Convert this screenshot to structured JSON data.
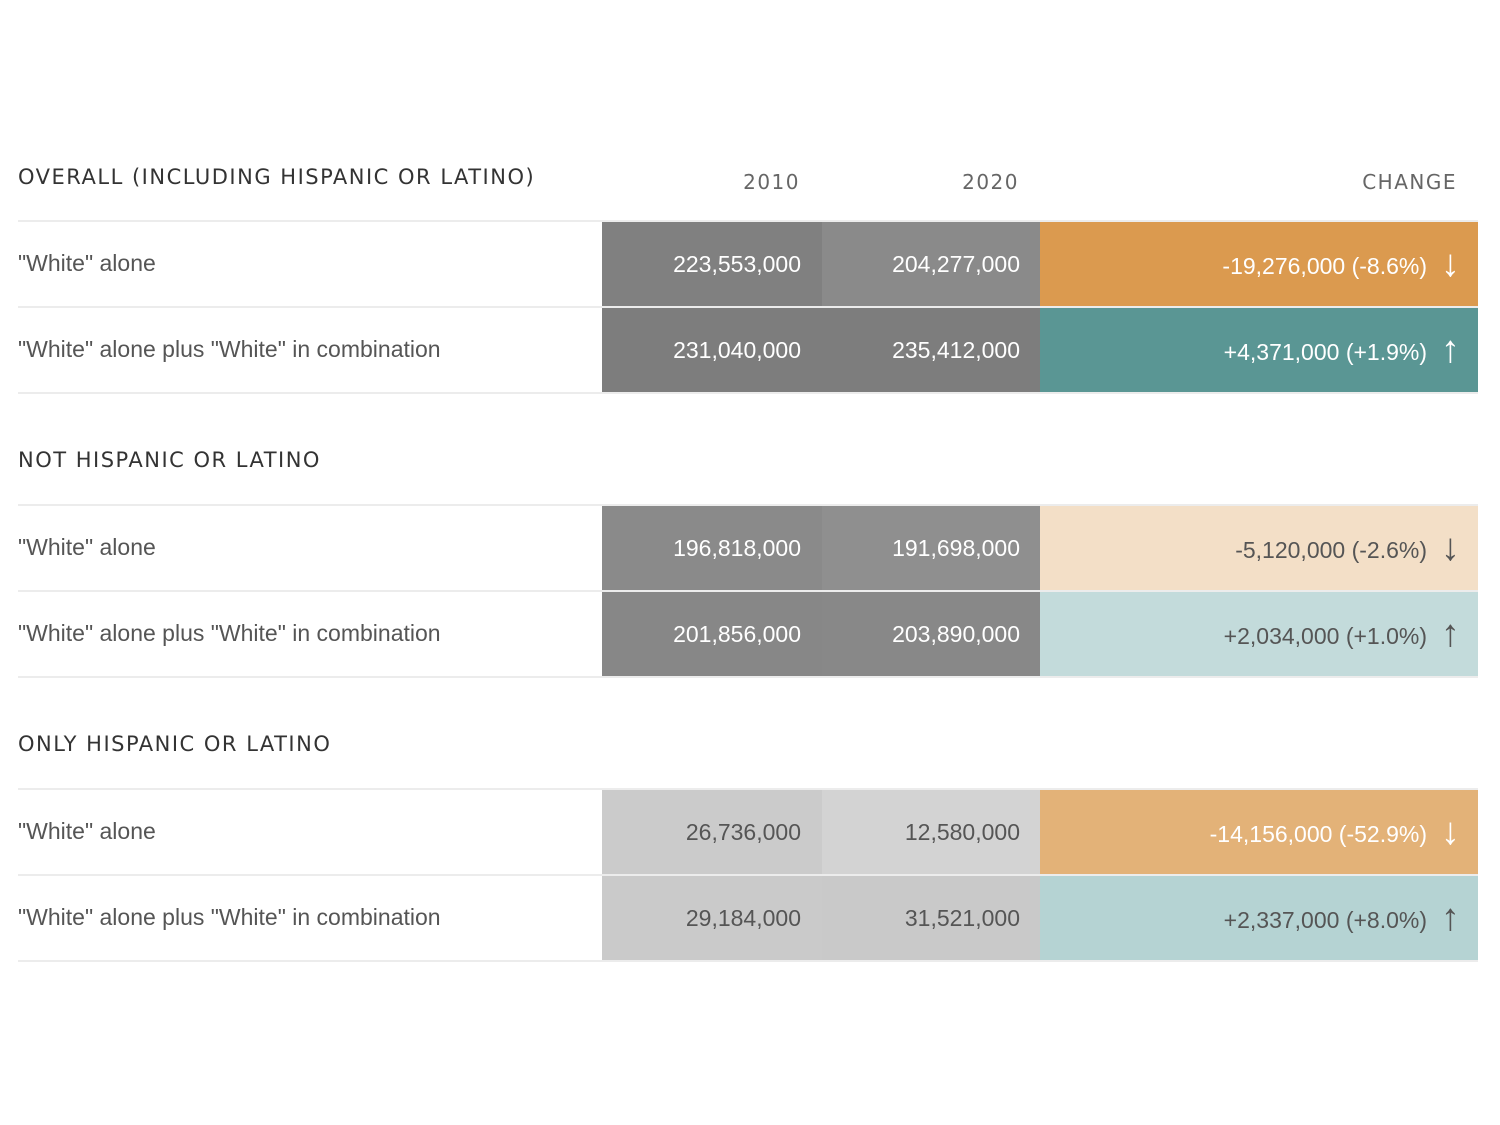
{
  "chart_data": {
    "type": "table",
    "columns": [
      "2010",
      "2020",
      "CHANGE"
    ],
    "sections": [
      {
        "title": "OVERALL (INCLUDING HISPANIC OR LATINO)",
        "rows": [
          {
            "label": "\"White\" alone",
            "v2010": "223,553,000",
            "v2020": "204,277,000",
            "change": "-19,276,000 (-8.6%)",
            "direction": "down",
            "color2010": "#808080",
            "color2020": "#8a8a8a",
            "colorChange": "#db9a4f",
            "textColor": "#ffffff"
          },
          {
            "label": "\"White\" alone plus \"White\" in combination",
            "v2010": "231,040,000",
            "v2020": "235,412,000",
            "change": "+4,371,000 (+1.9%)",
            "direction": "up",
            "color2010": "#7d7d7d",
            "color2020": "#7d7d7d",
            "colorChange": "#5a9694",
            "textColor": "#ffffff"
          }
        ]
      },
      {
        "title": "NOT HISPANIC OR LATINO",
        "rows": [
          {
            "label": "\"White\" alone",
            "v2010": "196,818,000",
            "v2020": "191,698,000",
            "change": "-5,120,000 (-2.6%)",
            "direction": "down",
            "color2010": "#8a8a8a",
            "color2020": "#8f8f8f",
            "colorChange": "#f3dfc7",
            "textColor": "#ffffff",
            "changeTextColor": "#555555"
          },
          {
            "label": "\"White\" alone plus \"White\" in combination",
            "v2010": "201,856,000",
            "v2020": "203,890,000",
            "change": "+2,034,000 (+1.0%)",
            "direction": "up",
            "color2010": "#878787",
            "color2020": "#888888",
            "colorChange": "#c3dbdb",
            "textColor": "#ffffff",
            "changeTextColor": "#555555"
          }
        ]
      },
      {
        "title": "ONLY HISPANIC OR LATINO",
        "rows": [
          {
            "label": "\"White\" alone",
            "v2010": "26,736,000",
            "v2020": "12,580,000",
            "change": "-14,156,000 (-52.9%)",
            "direction": "down",
            "color2010": "#cbcbcb",
            "color2020": "#d3d3d3",
            "colorChange": "#e3b278",
            "textColor": "#555555",
            "changeTextColor": "#ffffff"
          },
          {
            "label": "\"White\" alone plus \"White\" in combination",
            "v2010": "29,184,000",
            "v2020": "31,521,000",
            "change": "+2,337,000 (+8.0%)",
            "direction": "up",
            "color2010": "#cacaca",
            "color2020": "#c9c9c9",
            "colorChange": "#b5d3d3",
            "textColor": "#555555",
            "changeTextColor": "#555555"
          }
        ]
      }
    ],
    "arrow_glyphs": {
      "up": "↑",
      "down": "↓"
    }
  }
}
